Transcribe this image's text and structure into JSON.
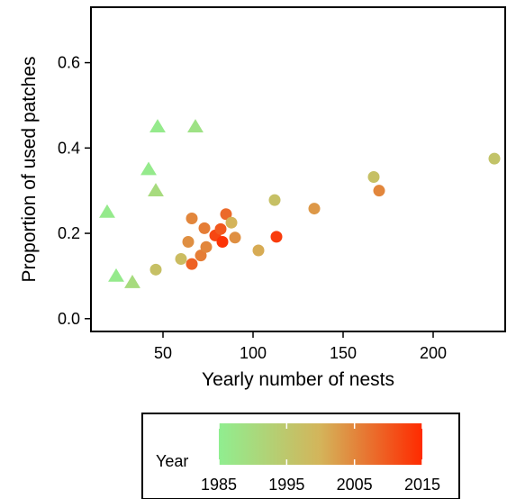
{
  "chart_data": {
    "type": "scatter",
    "xlabel": "Yearly number of nests",
    "ylabel": "Proportion of used patches",
    "xlim": [
      10,
      240
    ],
    "ylim": [
      -0.03,
      0.73
    ],
    "x_ticks": [
      50,
      100,
      150,
      200
    ],
    "y_ticks": [
      0.0,
      0.2,
      0.4,
      0.6
    ],
    "y_tick_labels": [
      "0.0",
      "0.2",
      "0.4",
      "0.6"
    ],
    "grid": false,
    "legend": {
      "title": "Year",
      "placement": "bottom",
      "type": "colorbar",
      "range": [
        1985,
        2015
      ],
      "ticks": [
        1985,
        1995,
        2005,
        2015
      ],
      "colors": {
        "start": "#90ee90",
        "mid": "#d4b45a",
        "end": "#ff2a00"
      }
    },
    "series": [
      {
        "marker": "triangle",
        "points": [
          {
            "x": 19,
            "y": 0.25,
            "year": 1986
          },
          {
            "x": 24,
            "y": 0.1,
            "year": 1986
          },
          {
            "x": 33,
            "y": 0.085,
            "year": 1990
          },
          {
            "x": 42,
            "y": 0.35,
            "year": 1986
          },
          {
            "x": 47,
            "y": 0.45,
            "year": 1986
          },
          {
            "x": 46,
            "y": 0.3,
            "year": 1990
          },
          {
            "x": 68,
            "y": 0.45,
            "year": 1988
          }
        ]
      },
      {
        "marker": "circle",
        "points": [
          {
            "x": 46,
            "y": 0.115,
            "year": 1997
          },
          {
            "x": 60,
            "y": 0.14,
            "year": 1998
          },
          {
            "x": 64,
            "y": 0.18,
            "year": 2004
          },
          {
            "x": 66,
            "y": 0.235,
            "year": 2005
          },
          {
            "x": 66,
            "y": 0.128,
            "year": 2009
          },
          {
            "x": 71,
            "y": 0.148,
            "year": 2006
          },
          {
            "x": 73,
            "y": 0.212,
            "year": 2006
          },
          {
            "x": 74,
            "y": 0.168,
            "year": 2005
          },
          {
            "x": 79,
            "y": 0.195,
            "year": 2012
          },
          {
            "x": 82,
            "y": 0.21,
            "year": 2010
          },
          {
            "x": 83,
            "y": 0.18,
            "year": 2014
          },
          {
            "x": 85,
            "y": 0.245,
            "year": 2008
          },
          {
            "x": 88,
            "y": 0.225,
            "year": 2000
          },
          {
            "x": 90,
            "y": 0.19,
            "year": 2004
          },
          {
            "x": 103,
            "y": 0.16,
            "year": 2001
          },
          {
            "x": 112,
            "y": 0.278,
            "year": 1997
          },
          {
            "x": 113,
            "y": 0.192,
            "year": 2013
          },
          {
            "x": 134,
            "y": 0.258,
            "year": 2003
          },
          {
            "x": 167,
            "y": 0.332,
            "year": 1997
          },
          {
            "x": 170,
            "y": 0.3,
            "year": 2005
          },
          {
            "x": 234,
            "y": 0.375,
            "year": 1996
          }
        ]
      }
    ]
  }
}
